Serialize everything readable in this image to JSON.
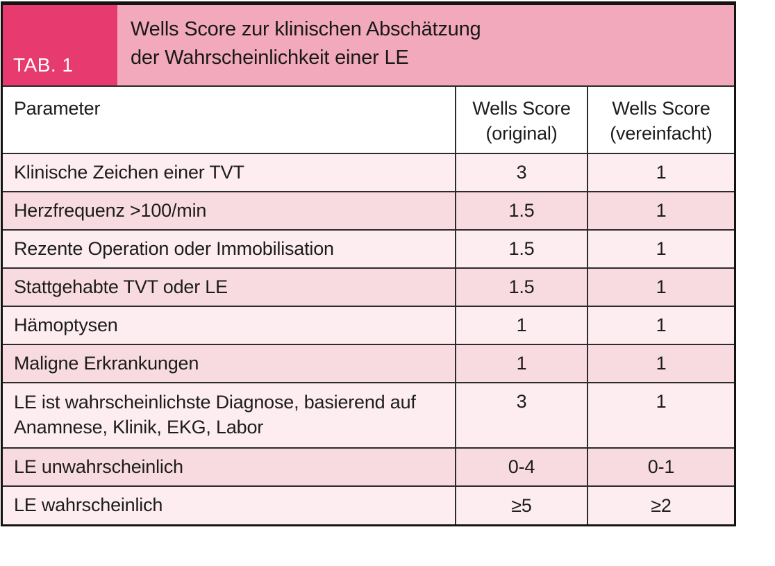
{
  "figure": {
    "tab_label": "TAB. 1",
    "title_line1": "Wells Score zur klinischen Abschätzung",
    "title_line2": "der Wahrscheinlichkeit einer LE"
  },
  "table": {
    "header": {
      "parameter": "Parameter",
      "original_line1": "Wells Score",
      "original_line2": "(original)",
      "simplified_line1": "Wells Score",
      "simplified_line2": "(vereinfacht)"
    },
    "rows": [
      {
        "parameter": "Klinische Zeichen einer TVT",
        "original": "3",
        "simplified": "1"
      },
      {
        "parameter": "Herzfrequenz >100/min",
        "original": "1.5",
        "simplified": "1"
      },
      {
        "parameter": "Rezente Operation oder Immobilisation",
        "original": "1.5",
        "simplified": "1"
      },
      {
        "parameter": "Stattgehabte TVT oder LE",
        "original": "1.5",
        "simplified": "1"
      },
      {
        "parameter": "Hämoptysen",
        "original": "1",
        "simplified": "1"
      },
      {
        "parameter": "Maligne Erkrankungen",
        "original": "1",
        "simplified": "1"
      },
      {
        "parameter": "LE ist wahrscheinlichste Diagnose, basierend auf Anamnese, Klinik, EKG, Labor",
        "original": "3",
        "simplified": "1"
      },
      {
        "parameter": "LE unwahrscheinlich",
        "original": "0-4",
        "simplified": "0-1"
      },
      {
        "parameter": "LE wahrscheinlich",
        "original": "≥5",
        "simplified": "≥2"
      }
    ]
  },
  "colors": {
    "accent_pink": "#e73a6e",
    "banner_pink": "#f3a9bc",
    "row_light": "#fdedf1",
    "row_dark": "#f8dbe1",
    "border": "#2b2b2b"
  }
}
